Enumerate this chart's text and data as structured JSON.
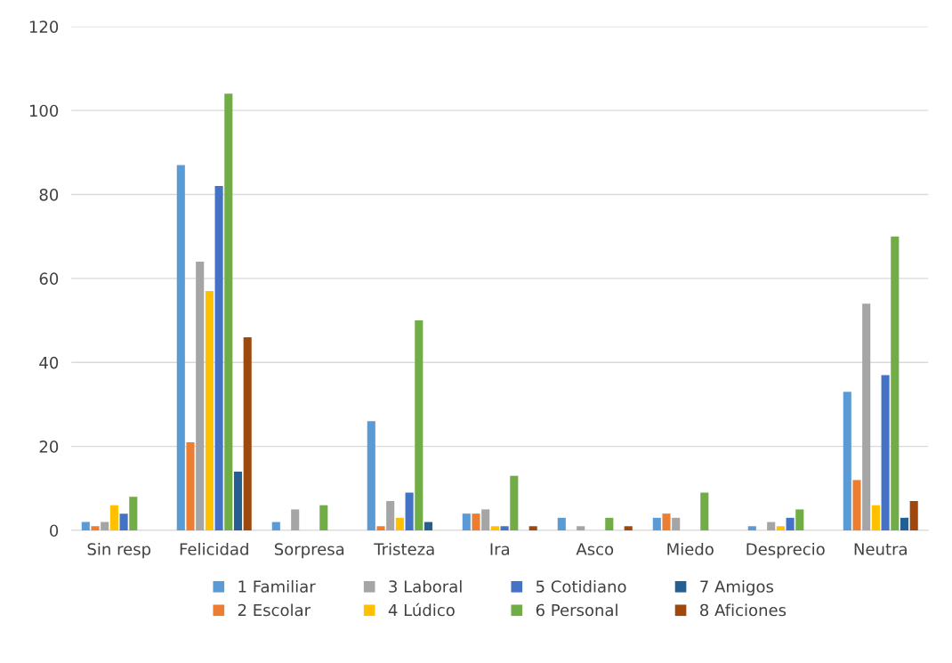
{
  "chart_data": {
    "type": "bar",
    "categories": [
      "Sin resp",
      "Felicidad",
      "Sorpresa",
      "Tristeza",
      "Ira",
      "Asco",
      "Miedo",
      "Desprecio",
      "Neutra"
    ],
    "series": [
      {
        "name": "1 Familiar",
        "color": "#5b9bd5",
        "values": [
          2,
          87,
          2,
          26,
          4,
          3,
          3,
          1,
          33
        ]
      },
      {
        "name": "2 Escolar",
        "color": "#ed7d31",
        "values": [
          1,
          21,
          0,
          1,
          4,
          0,
          4,
          0,
          12
        ]
      },
      {
        "name": "3 Laboral",
        "color": "#a5a5a5",
        "values": [
          2,
          64,
          5,
          7,
          5,
          1,
          3,
          2,
          54
        ]
      },
      {
        "name": "4 Lúdico",
        "color": "#ffc000",
        "values": [
          6,
          57,
          0,
          3,
          1,
          0,
          0,
          1,
          6
        ]
      },
      {
        "name": "5 Cotidiano",
        "color": "#4472c4",
        "values": [
          4,
          82,
          0,
          9,
          1,
          0,
          0,
          3,
          37
        ]
      },
      {
        "name": "6 Personal",
        "color": "#70ad47",
        "values": [
          8,
          104,
          6,
          50,
          13,
          3,
          9,
          5,
          70
        ]
      },
      {
        "name": "7 Amigos",
        "color": "#255e91",
        "values": [
          0,
          14,
          0,
          2,
          0,
          0,
          0,
          0,
          3
        ]
      },
      {
        "name": "8 Aficiones",
        "color": "#9e480e",
        "values": [
          0,
          46,
          0,
          0,
          1,
          1,
          0,
          0,
          7
        ]
      }
    ],
    "ylim": [
      0,
      120
    ],
    "yticks": [
      0,
      20,
      40,
      60,
      80,
      100,
      120
    ],
    "grid": "y",
    "legend": "bottom"
  }
}
